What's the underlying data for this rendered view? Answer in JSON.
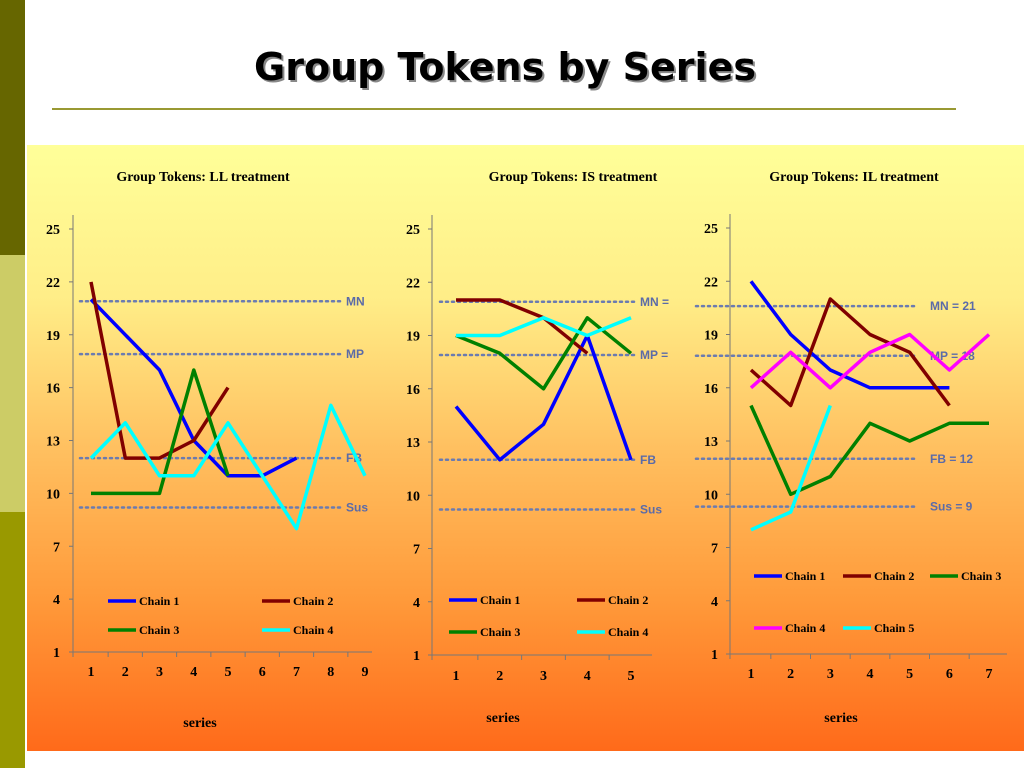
{
  "slide": {
    "title": "Group Tokens by Series"
  },
  "chart_data": [
    {
      "type": "line",
      "title": "Group Tokens: LL treatment",
      "xlabel": "series",
      "ylabel": "",
      "x": [
        1,
        2,
        3,
        4,
        5,
        6,
        7,
        8,
        9
      ],
      "ylim": [
        1,
        25
      ],
      "yticks": [
        1,
        4,
        7,
        10,
        13,
        16,
        19,
        22,
        25
      ],
      "series": [
        {
          "name": "Chain 1",
          "color": "#0000ff",
          "values": [
            21,
            19,
            17,
            13,
            11,
            11,
            12,
            null,
            null
          ]
        },
        {
          "name": "Chain 2",
          "color": "#800000",
          "values": [
            22,
            12,
            12,
            13,
            16,
            null,
            null,
            null,
            null
          ]
        },
        {
          "name": "Chain 3",
          "color": "#008000",
          "values": [
            10,
            10,
            10,
            17,
            11,
            null,
            null,
            null,
            null
          ]
        },
        {
          "name": "Chain 4",
          "color": "#00ffff",
          "values": [
            12,
            14,
            11,
            11,
            14,
            11,
            8,
            15,
            11
          ]
        }
      ],
      "reference_lines": [
        {
          "label": "MN",
          "value": 20.9
        },
        {
          "label": "MP",
          "value": 17.9
        },
        {
          "label": "FB",
          "value": 12
        },
        {
          "label": "Sus",
          "value": 9.2
        }
      ]
    },
    {
      "type": "line",
      "title": "Group Tokens: IS treatment",
      "xlabel": "series",
      "ylabel": "",
      "x": [
        1,
        2,
        3,
        4,
        5
      ],
      "ylim": [
        1,
        25
      ],
      "yticks": [
        1,
        4,
        7,
        10,
        13,
        16,
        19,
        22,
        25
      ],
      "series": [
        {
          "name": "Chain 1",
          "color": "#0000ff",
          "values": [
            15,
            12,
            14,
            19,
            12
          ]
        },
        {
          "name": "Chain 2",
          "color": "#800000",
          "values": [
            21,
            21,
            20,
            18,
            null
          ]
        },
        {
          "name": "Chain 3",
          "color": "#008000",
          "values": [
            19,
            18,
            16,
            20,
            18
          ]
        },
        {
          "name": "Chain 4",
          "color": "#00ffff",
          "values": [
            19,
            19,
            20,
            19,
            20
          ]
        }
      ],
      "reference_lines": [
        {
          "label": "MN =",
          "value": 20.9
        },
        {
          "label": "MP =",
          "value": 17.9
        },
        {
          "label": "FB",
          "value": 12
        },
        {
          "label": "Sus",
          "value": 9.2
        }
      ]
    },
    {
      "type": "line",
      "title": "Group Tokens: IL treatment",
      "xlabel": "series",
      "ylabel": "",
      "x": [
        1,
        2,
        3,
        4,
        5,
        6,
        7
      ],
      "ylim": [
        1,
        25
      ],
      "yticks": [
        1,
        4,
        7,
        10,
        13,
        16,
        19,
        22,
        25
      ],
      "series": [
        {
          "name": "Chain 1",
          "color": "#0000ff",
          "values": [
            22,
            19,
            17,
            16,
            16,
            16,
            null
          ]
        },
        {
          "name": "Chain 2",
          "color": "#800000",
          "values": [
            17,
            15,
            21,
            19,
            18,
            15,
            null
          ]
        },
        {
          "name": "Chain 3",
          "color": "#008000",
          "values": [
            15,
            10,
            11,
            14,
            13,
            14,
            14
          ]
        },
        {
          "name": "Chain 4",
          "color": "#ff00ff",
          "values": [
            16,
            18,
            16,
            18,
            19,
            17,
            19
          ]
        },
        {
          "name": "Chain 5",
          "color": "#00ffff",
          "values": [
            8,
            9,
            15,
            null,
            null,
            null,
            null
          ]
        }
      ],
      "reference_lines": [
        {
          "label": "MN = 21",
          "value": 20.6
        },
        {
          "label": "MP = 18",
          "value": 17.8
        },
        {
          "label": "FB = 12",
          "value": 12
        },
        {
          "label": "Sus = 9",
          "value": 9.3
        }
      ]
    }
  ]
}
